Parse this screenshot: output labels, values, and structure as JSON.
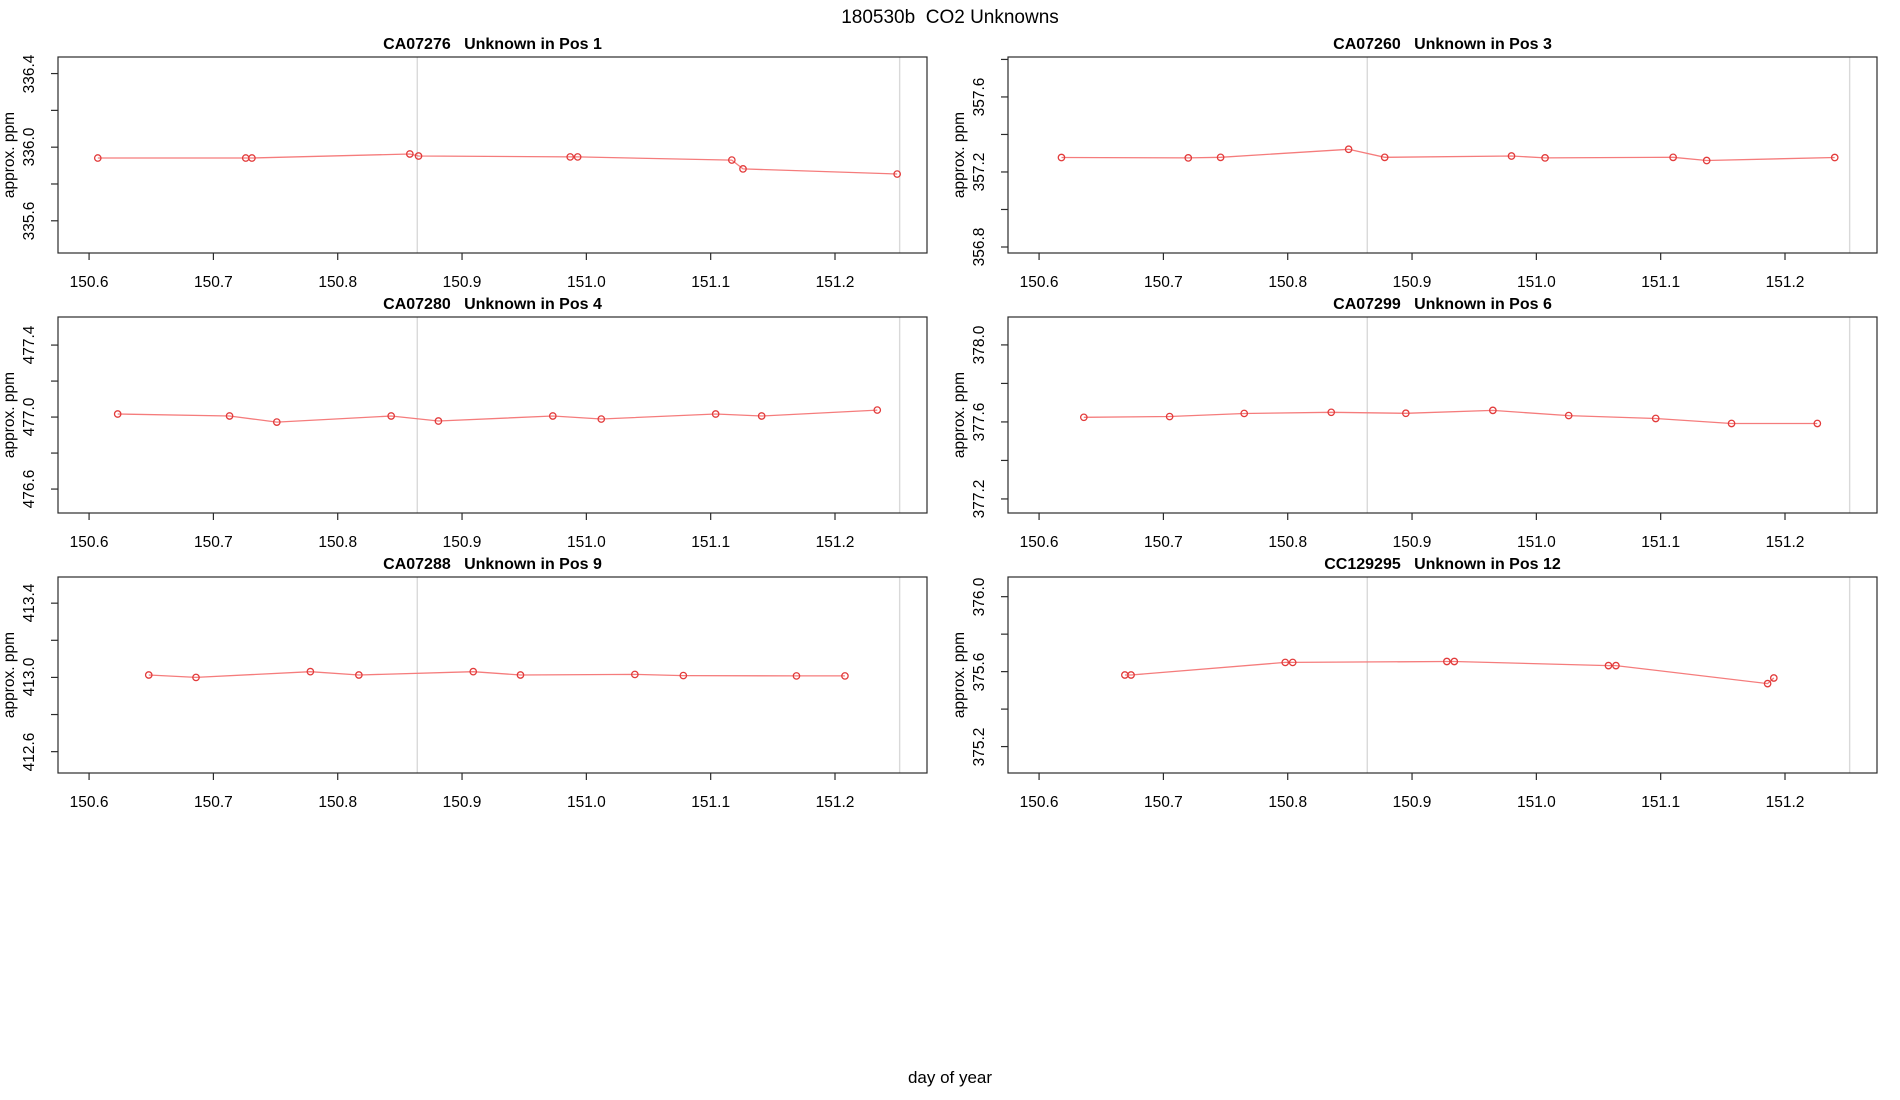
{
  "title": "180530b  CO2 Unknowns",
  "x_axis_title": "day of year",
  "y_axis_title": "approx. ppm",
  "colors": {
    "series_line": "#f57c7c",
    "series_point": "#e23b3b",
    "reference_line": "#d9d9d9",
    "axis": "#2b2b2b",
    "text": "#000000"
  },
  "x_ticks": [
    "150.6",
    "150.7",
    "150.8",
    "150.9",
    "151.0",
    "151.1",
    "151.2"
  ],
  "reference_lines_x": [
    150.864,
    151.252
  ],
  "xlim": [
    150.575,
    151.274
  ],
  "chart_data": [
    {
      "type": "line",
      "title": "CA07276   Unknown in Pos 1",
      "sample_id": "CA07276",
      "position_label": "Unknown in Pos 1",
      "ylabel": "approx. ppm",
      "xlabel": "day of year",
      "ylim": [
        335.425,
        336.49
      ],
      "yticks": [
        335.6,
        335.8,
        336.0,
        336.2,
        336.4
      ],
      "ytick_labels": [
        "335.6",
        "336.0",
        "336.4"
      ],
      "ytick_labeled_values": [
        335.6,
        336.0,
        336.4
      ],
      "x": [
        150.607,
        150.726,
        150.731,
        150.858,
        150.865,
        150.987,
        150.993,
        151.117,
        151.126,
        151.25
      ],
      "y": [
        335.941,
        335.941,
        335.941,
        335.963,
        335.952,
        335.947,
        335.947,
        335.93,
        335.882,
        335.854
      ]
    },
    {
      "type": "line",
      "title": "CA07260   Unknown in Pos 3",
      "sample_id": "CA07260",
      "position_label": "Unknown in Pos 3",
      "ylabel": "approx. ppm",
      "xlabel": "day of year",
      "ylim": [
        356.768,
        357.813
      ],
      "yticks": [
        356.8,
        357.0,
        357.2,
        357.4,
        357.6,
        357.8
      ],
      "ytick_labels": [
        "356.8",
        "357.2",
        "357.6"
      ],
      "ytick_labeled_values": [
        356.8,
        357.2,
        357.6
      ],
      "x": [
        150.618,
        150.72,
        150.746,
        150.849,
        150.878,
        150.98,
        151.007,
        151.11,
        151.137,
        151.24
      ],
      "y": [
        357.277,
        357.275,
        357.278,
        357.321,
        357.278,
        357.285,
        357.275,
        357.278,
        357.261,
        357.277
      ]
    },
    {
      "type": "line",
      "title": "CA07280   Unknown in Pos 4",
      "sample_id": "CA07280",
      "position_label": "Unknown in Pos 4",
      "ylabel": "approx. ppm",
      "xlabel": "day of year",
      "ylim": [
        476.467,
        477.556
      ],
      "yticks": [
        476.6,
        476.8,
        477.0,
        477.2,
        477.4
      ],
      "ytick_labels": [
        "476.6",
        "477.0",
        "477.4"
      ],
      "ytick_labeled_values": [
        476.6,
        477.0,
        477.4
      ],
      "x": [
        150.623,
        150.713,
        150.751,
        150.843,
        150.881,
        150.973,
        151.012,
        151.104,
        151.141,
        151.234
      ],
      "y": [
        477.017,
        477.006,
        476.972,
        477.006,
        476.978,
        477.006,
        476.989,
        477.017,
        477.006,
        477.039
      ]
    },
    {
      "type": "line",
      "title": "CA07299   Unknown in Pos 6",
      "sample_id": "CA07299",
      "position_label": "Unknown in Pos 6",
      "ylabel": "approx. ppm",
      "xlabel": "day of year",
      "ylim": [
        377.127,
        378.145
      ],
      "yticks": [
        377.2,
        377.4,
        377.6,
        377.8,
        378.0
      ],
      "ytick_labels": [
        "377.2",
        "377.6",
        "378.0"
      ],
      "ytick_labeled_values": [
        377.2,
        377.6,
        378.0
      ],
      "x": [
        150.636,
        150.705,
        150.765,
        150.835,
        150.895,
        150.965,
        151.026,
        151.096,
        151.157,
        151.226
      ],
      "y": [
        377.624,
        377.628,
        377.644,
        377.65,
        377.645,
        377.66,
        377.633,
        377.618,
        377.592,
        377.592
      ]
    },
    {
      "type": "line",
      "title": "CA07288   Unknown in Pos 9",
      "sample_id": "CA07288",
      "position_label": "Unknown in Pos 9",
      "ylabel": "approx. ppm",
      "xlabel": "day of year",
      "ylim": [
        412.485,
        413.541
      ],
      "yticks": [
        412.6,
        412.8,
        413.0,
        413.2,
        413.4
      ],
      "ytick_labels": [
        "412.6",
        "413.0",
        "413.4"
      ],
      "ytick_labeled_values": [
        412.6,
        413.0,
        413.4
      ],
      "x": [
        150.648,
        150.686,
        150.778,
        150.817,
        150.909,
        150.947,
        151.039,
        151.078,
        151.169,
        151.208
      ],
      "y": [
        413.013,
        413.0,
        413.031,
        413.013,
        413.031,
        413.013,
        413.016,
        413.01,
        413.008,
        413.008
      ]
    },
    {
      "type": "line",
      "title": "CC129295   Unknown in Pos 12",
      "sample_id": "CC129295",
      "position_label": "Unknown in Pos 12",
      "ylabel": "approx. ppm",
      "xlabel": "day of year",
      "ylim": [
        375.059,
        376.105
      ],
      "yticks": [
        375.2,
        375.4,
        375.6,
        375.8,
        376.0
      ],
      "ytick_labels": [
        "375.2",
        "375.6",
        "376.0"
      ],
      "ytick_labeled_values": [
        375.2,
        375.6,
        376.0
      ],
      "x": [
        150.669,
        150.674,
        150.798,
        150.804,
        150.928,
        150.934,
        151.058,
        151.064,
        151.186,
        151.191
      ],
      "y": [
        375.582,
        375.582,
        375.649,
        375.649,
        375.654,
        375.654,
        375.632,
        375.632,
        375.536,
        375.566
      ]
    }
  ]
}
